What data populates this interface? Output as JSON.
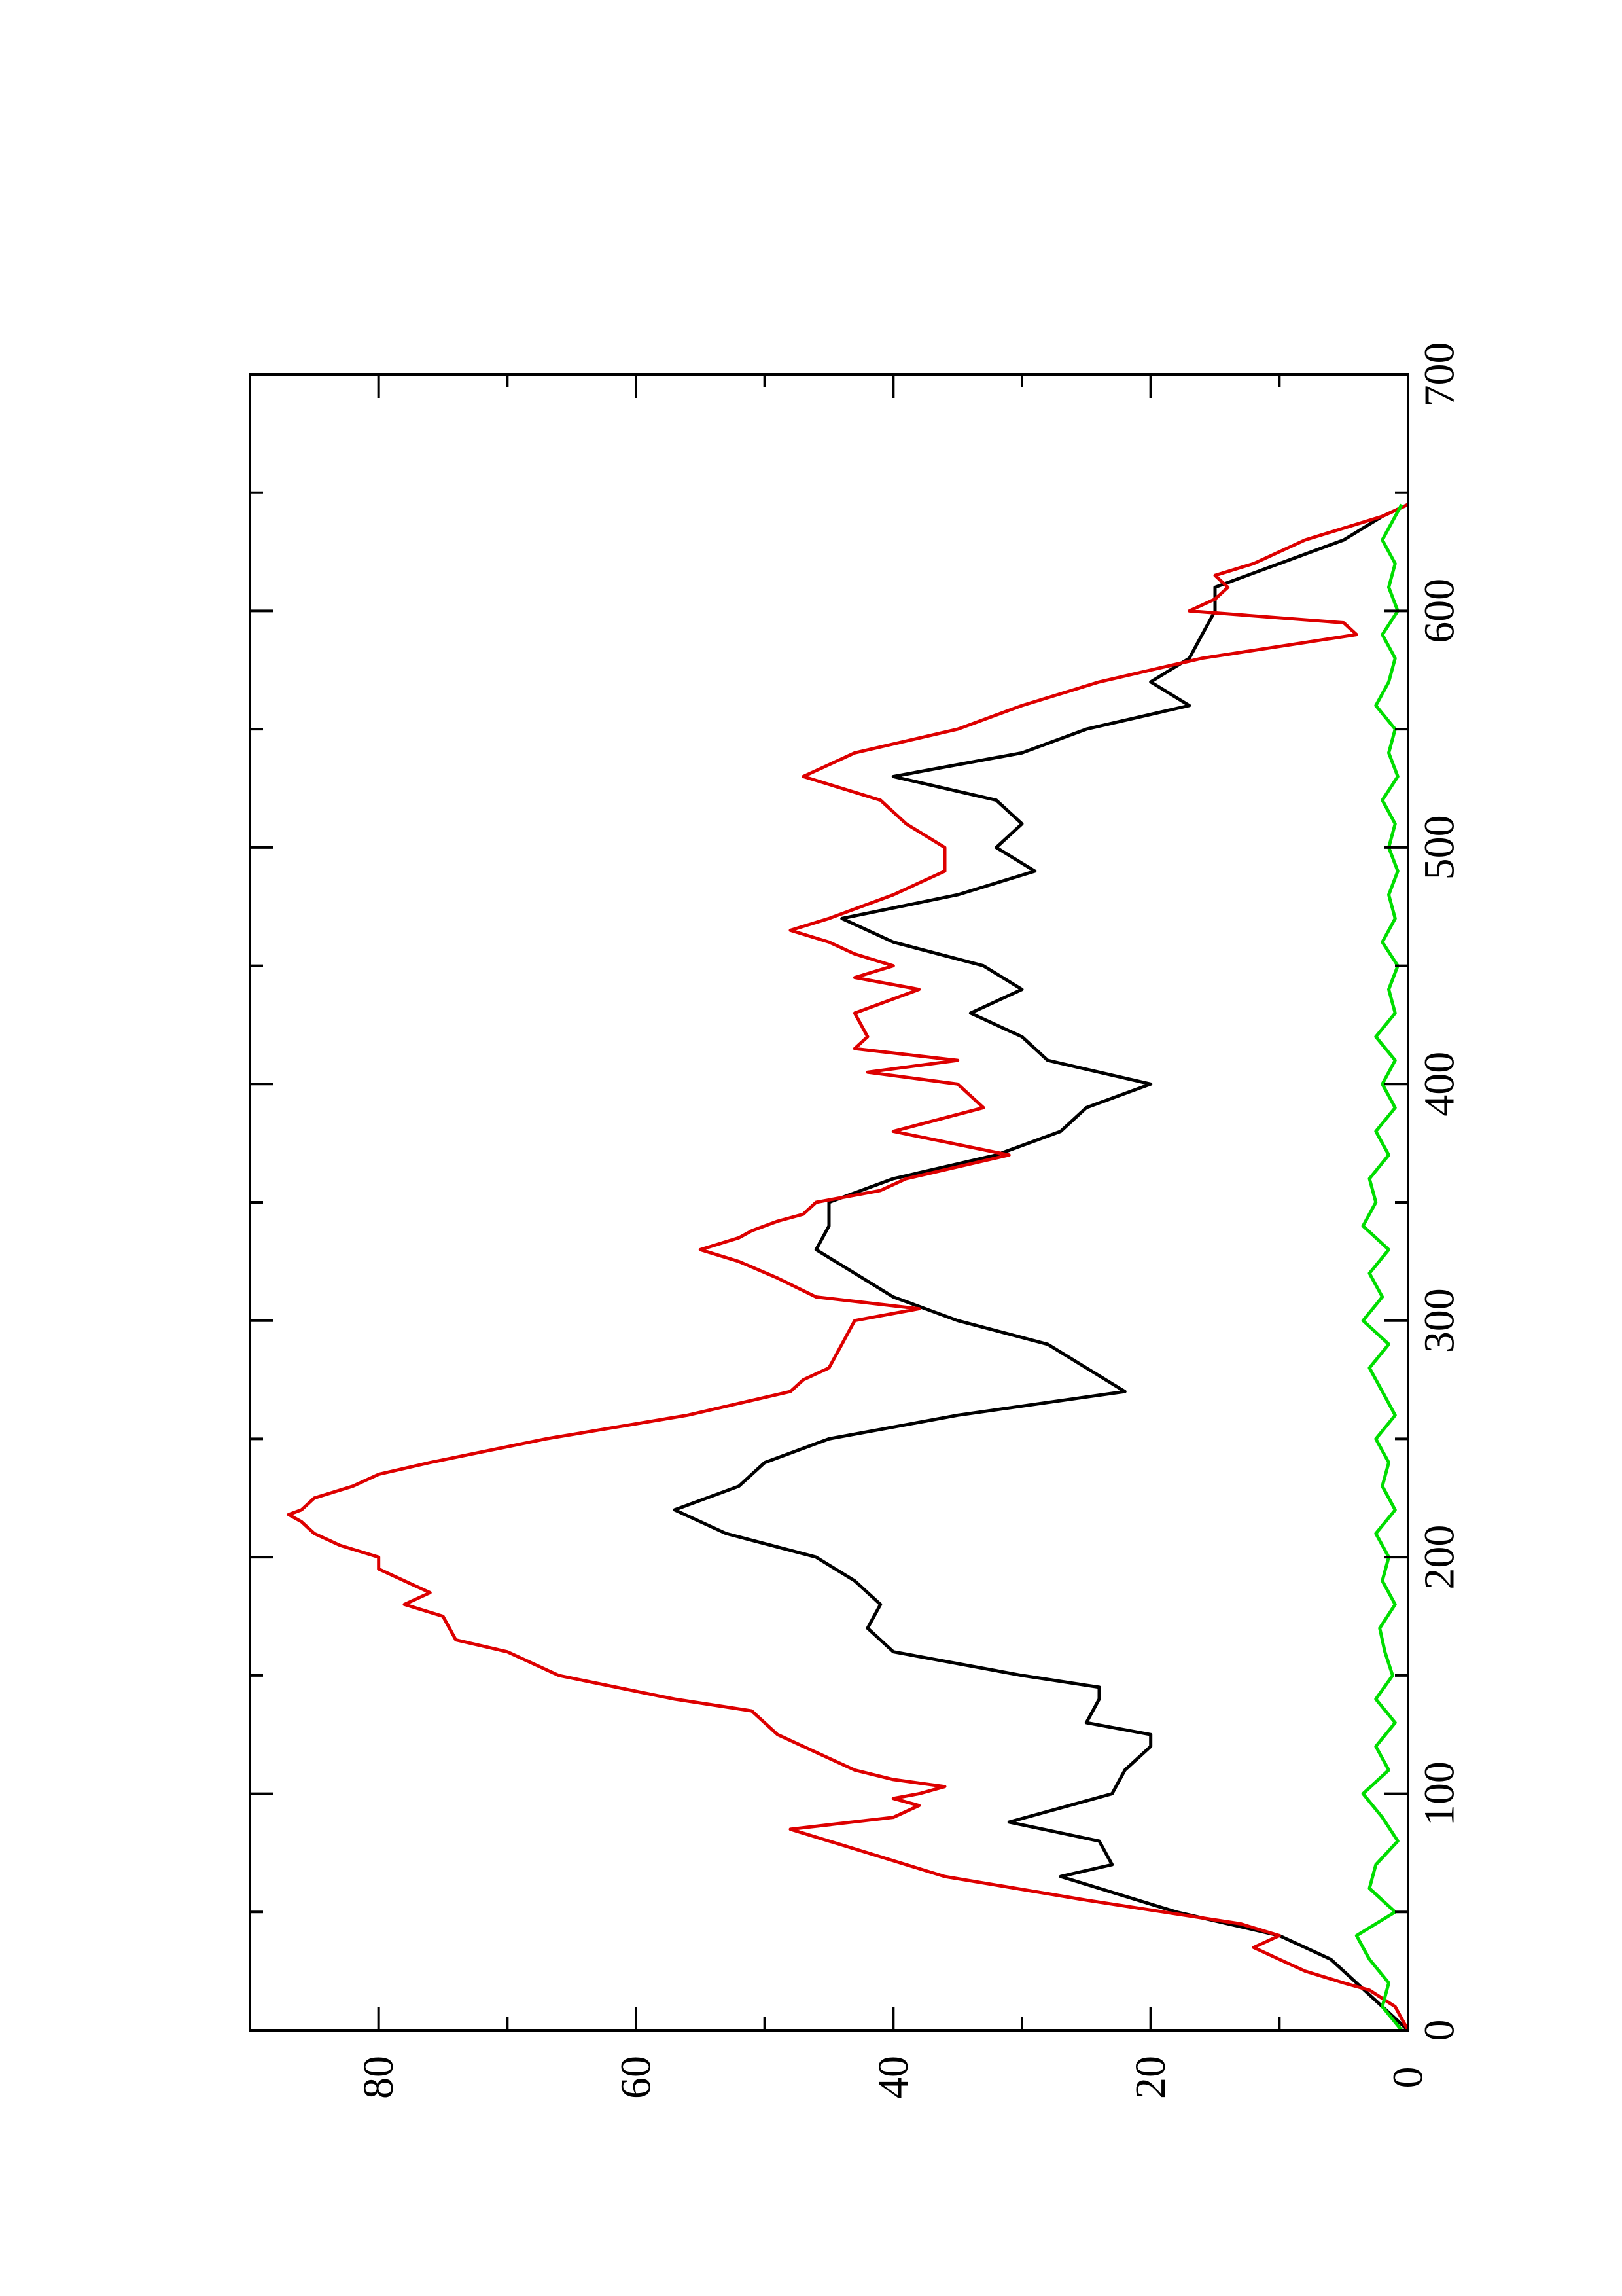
{
  "chart_data": {
    "type": "line",
    "orientation": "rotated-90",
    "title": "",
    "xlabel": "",
    "ylabel": "",
    "xlim": [
      0,
      700
    ],
    "ylim": [
      0,
      90
    ],
    "x_ticks": [
      0,
      100,
      200,
      300,
      400,
      500,
      600,
      700
    ],
    "y_ticks": [
      0,
      20,
      40,
      60,
      80
    ],
    "legend": "none",
    "grid": false,
    "series": [
      {
        "color": "#000000",
        "x": [
          0,
          10,
          20,
          30,
          40,
          50,
          60,
          65,
          70,
          80,
          88,
          100,
          110,
          120,
          125,
          130,
          140,
          145,
          150,
          160,
          170,
          180,
          190,
          200,
          210,
          220,
          230,
          240,
          250,
          260,
          270,
          280,
          290,
          300,
          310,
          320,
          330,
          340,
          350,
          360,
          370,
          380,
          390,
          400,
          410,
          420,
          430,
          440,
          450,
          460,
          470,
          480,
          490,
          500,
          510,
          520,
          530,
          540,
          550,
          560,
          570,
          580,
          590,
          600,
          610,
          620,
          630,
          640,
          645
        ],
        "y": [
          0,
          2,
          4,
          6,
          10,
          18,
          24,
          27,
          23,
          24,
          31,
          23,
          22,
          20,
          20,
          25,
          24,
          24,
          30,
          40,
          42,
          41,
          43,
          46,
          53,
          57,
          52,
          50,
          45,
          35,
          22,
          25,
          28,
          35,
          40,
          43,
          46,
          45,
          45,
          40,
          32,
          27,
          25,
          20,
          28,
          30,
          34,
          30,
          33,
          40,
          44,
          35,
          29,
          32,
          30,
          32,
          40,
          30,
          25,
          17,
          20,
          17,
          16,
          15,
          15,
          10,
          5,
          2,
          0
        ]
      },
      {
        "color": "#dd0000",
        "x": [
          0,
          10,
          17,
          20,
          25,
          30,
          35,
          40,
          45,
          55,
          65,
          75,
          85,
          90,
          95,
          98,
          100,
          103,
          106,
          110,
          115,
          120,
          125,
          135,
          140,
          150,
          160,
          165,
          175,
          180,
          185,
          190,
          195,
          200,
          205,
          210,
          215,
          218,
          220,
          225,
          230,
          235,
          240,
          250,
          260,
          270,
          275,
          280,
          290,
          300,
          305,
          310,
          318,
          325,
          330,
          335,
          338,
          342,
          345,
          350,
          355,
          360,
          370,
          380,
          390,
          400,
          405,
          410,
          415,
          420,
          430,
          440,
          445,
          450,
          455,
          460,
          465,
          470,
          480,
          490,
          500,
          510,
          520,
          530,
          535,
          540,
          550,
          560,
          570,
          580,
          590,
          595,
          600,
          605,
          610,
          615,
          620,
          630,
          640,
          645
        ],
        "y": [
          0,
          1,
          3,
          5,
          8,
          10,
          12,
          10,
          13,
          25,
          36,
          42,
          48,
          40,
          38,
          40,
          38,
          36,
          40,
          43,
          45,
          47,
          49,
          51,
          57,
          66,
          70,
          74,
          75,
          78,
          76,
          78,
          80,
          80,
          83,
          85,
          86,
          87,
          86,
          85,
          82,
          80,
          76,
          67,
          56,
          48,
          47,
          45,
          44,
          43,
          38,
          46,
          49,
          52,
          55,
          52,
          51,
          49,
          47,
          46,
          41,
          39,
          31,
          40,
          33,
          35,
          42,
          35,
          43,
          42,
          43,
          38,
          43,
          40,
          43,
          45,
          48,
          45,
          40,
          36,
          36,
          39,
          41,
          47,
          45,
          43,
          35,
          30,
          24,
          16,
          4,
          5,
          17,
          15,
          14,
          15,
          12,
          8,
          2,
          0
        ]
      },
      {
        "color": "#00dd00",
        "x": [
          0,
          10,
          20,
          30,
          40,
          50,
          60,
          70,
          80,
          90,
          100,
          110,
          120,
          130,
          140,
          150,
          160,
          170,
          180,
          190,
          200,
          210,
          220,
          230,
          240,
          250,
          260,
          270,
          280,
          290,
          300,
          310,
          320,
          330,
          340,
          350,
          360,
          370,
          380,
          390,
          400,
          410,
          420,
          430,
          440,
          450,
          460,
          470,
          480,
          490,
          500,
          510,
          520,
          530,
          540,
          550,
          560,
          570,
          580,
          590,
          600,
          610,
          620,
          630,
          640,
          645
        ],
        "y": [
          0.5,
          2.0,
          1.5,
          3.0,
          4.0,
          1.0,
          3.0,
          2.5,
          0.8,
          2.0,
          3.5,
          1.5,
          2.5,
          1.0,
          2.5,
          1.2,
          1.8,
          2.2,
          1.0,
          2.0,
          1.5,
          2.5,
          1.0,
          2.0,
          1.5,
          2.5,
          1.0,
          2.0,
          3.0,
          1.5,
          3.5,
          2.0,
          3.0,
          1.5,
          3.5,
          2.5,
          3.0,
          1.5,
          2.5,
          1.0,
          2.0,
          1.0,
          2.5,
          1.0,
          1.5,
          0.8,
          2.0,
          1.0,
          1.5,
          0.8,
          1.5,
          1.0,
          2.0,
          0.8,
          1.5,
          1.0,
          2.5,
          1.5,
          1.0,
          2.0,
          0.8,
          1.5,
          1.0,
          2.0,
          1.0,
          0.5
        ]
      }
    ]
  }
}
